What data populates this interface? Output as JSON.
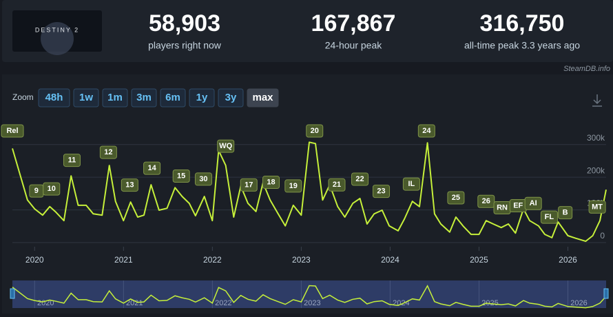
{
  "header": {
    "logo": "DESTINY 2",
    "stats": [
      {
        "value": "58,903",
        "label": "players right now"
      },
      {
        "value": "167,867",
        "label": "24-hour peak"
      },
      {
        "value": "316,750",
        "label": "all-time peak 3.3 years ago"
      }
    ]
  },
  "watermark": "SteamDB.info",
  "zoom": {
    "label": "Zoom",
    "buttons": [
      "48h",
      "1w",
      "1m",
      "3m",
      "6m",
      "1y",
      "3y",
      "max"
    ],
    "active": "max"
  },
  "chart_data": {
    "type": "line",
    "color": "#c6f03a",
    "grid": true,
    "x": [
      2019.75,
      2019.92,
      2020.0,
      2020.09,
      2020.17,
      2020.24,
      2020.33,
      2020.41,
      2020.49,
      2020.58,
      2020.66,
      2020.76,
      2020.84,
      2020.91,
      2021.0,
      2021.08,
      2021.16,
      2021.23,
      2021.31,
      2021.4,
      2021.49,
      2021.58,
      2021.66,
      2021.74,
      2021.81,
      2021.91,
      2022.0,
      2022.07,
      2022.15,
      2022.24,
      2022.32,
      2022.4,
      2022.49,
      2022.57,
      2022.65,
      2022.74,
      2022.82,
      2022.91,
      2023.0,
      2023.09,
      2023.16,
      2023.24,
      2023.32,
      2023.41,
      2023.49,
      2023.58,
      2023.66,
      2023.74,
      2023.82,
      2023.91,
      2023.99,
      2024.09,
      2024.16,
      2024.25,
      2024.33,
      2024.42,
      2024.5,
      2024.57,
      2024.67,
      2024.74,
      2024.82,
      2024.91,
      2025.0,
      2025.08,
      2025.16,
      2025.25,
      2025.33,
      2025.41,
      2025.5,
      2025.57,
      2025.67,
      2025.74,
      2025.82,
      2025.89,
      2026.0,
      2026.09,
      2026.2,
      2026.28,
      2026.36,
      2026.43
    ],
    "values": [
      288000,
      130000,
      103000,
      84000,
      110000,
      93000,
      67000,
      204000,
      114000,
      114000,
      88000,
      84000,
      236000,
      126000,
      67000,
      124000,
      78000,
      84000,
      177000,
      99000,
      105000,
      168000,
      141000,
      120000,
      82000,
      141000,
      67000,
      282000,
      236000,
      78000,
      173000,
      120000,
      95000,
      183000,
      130000,
      88000,
      51000,
      114000,
      84000,
      307000,
      303000,
      130000,
      177000,
      110000,
      78000,
      120000,
      135000,
      57000,
      88000,
      99000,
      51000,
      36000,
      72000,
      126000,
      110000,
      305000,
      88000,
      57000,
      32000,
      78000,
      51000,
      25000,
      25000,
      67000,
      57000,
      46000,
      57000,
      29000,
      103000,
      67000,
      51000,
      25000,
      15000,
      63000,
      21000,
      13000,
      4000,
      21000,
      67000,
      162000
    ],
    "xlim": [
      2019.75,
      2026.43
    ],
    "xticks": [
      2020,
      2021,
      2022,
      2023,
      2024,
      2025,
      2026
    ],
    "ylim": [
      0,
      350000
    ],
    "yticks": [
      0,
      {
        "value": 100000,
        "label": "100k"
      },
      {
        "value": 200000,
        "label": "200k"
      },
      {
        "value": 300000,
        "label": "300k"
      }
    ],
    "annotations": [
      {
        "label": "Rel",
        "x": 2019.75
      },
      {
        "label": "9",
        "x": 2020.02
      },
      {
        "label": "10",
        "x": 2020.19
      },
      {
        "label": "11",
        "x": 2020.42
      },
      {
        "label": "12",
        "x": 2020.83
      },
      {
        "label": "13",
        "x": 2021.07
      },
      {
        "label": "14",
        "x": 2021.32
      },
      {
        "label": "15",
        "x": 2021.65
      },
      {
        "label": "30",
        "x": 2021.9
      },
      {
        "label": "WQ",
        "x": 2022.15
      },
      {
        "label": "17",
        "x": 2022.41
      },
      {
        "label": "18",
        "x": 2022.66
      },
      {
        "label": "19",
        "x": 2022.91
      },
      {
        "label": "20",
        "x": 2023.15
      },
      {
        "label": "21",
        "x": 2023.4
      },
      {
        "label": "22",
        "x": 2023.66
      },
      {
        "label": "23",
        "x": 2023.9
      },
      {
        "label": "IL",
        "x": 2024.24
      },
      {
        "label": "24",
        "x": 2024.41
      },
      {
        "label": "25",
        "x": 2024.74
      },
      {
        "label": "26",
        "x": 2025.08
      },
      {
        "label": "RN",
        "x": 2025.26
      },
      {
        "label": "EF",
        "x": 2025.44
      },
      {
        "label": "AI",
        "x": 2025.61
      },
      {
        "label": "FL",
        "x": 2025.79
      },
      {
        "label": "B",
        "x": 2025.97
      },
      {
        "label": "MT",
        "x": 2026.33
      }
    ]
  }
}
